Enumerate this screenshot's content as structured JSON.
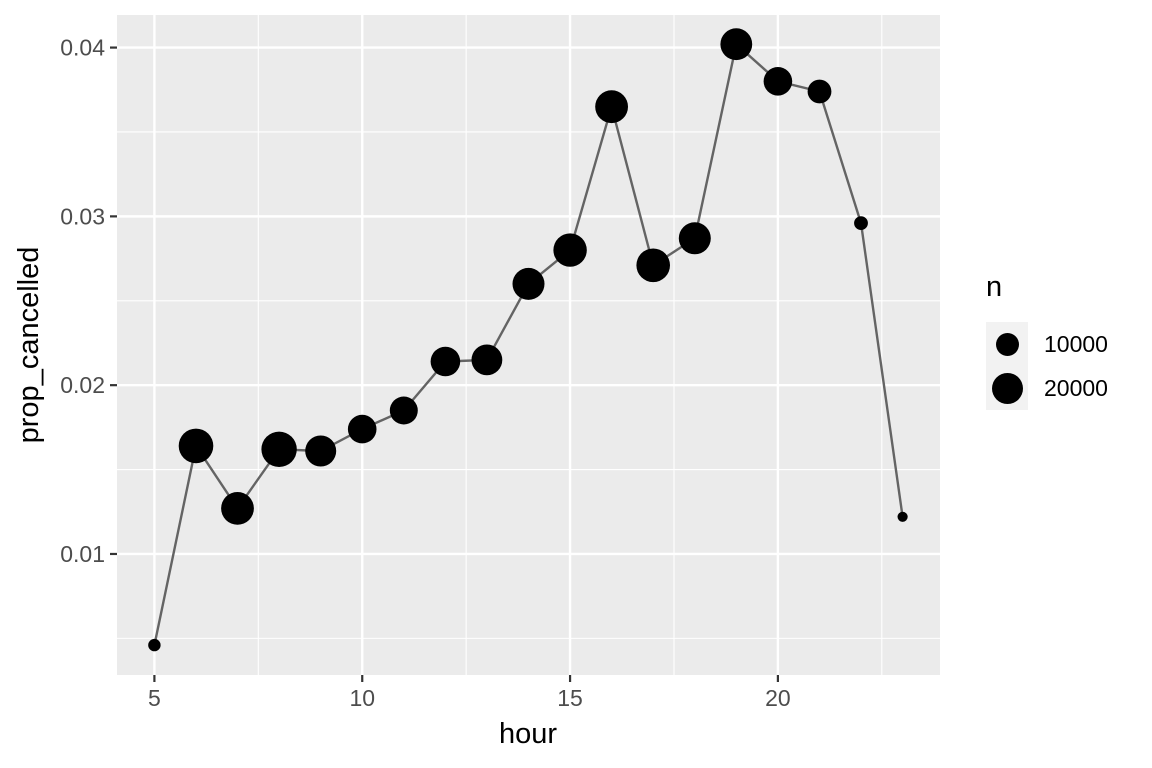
{
  "chart_data": {
    "type": "scatter-line",
    "title": "",
    "xlabel": "hour",
    "ylabel": "prop_cancelled",
    "x": [
      5,
      6,
      7,
      8,
      9,
      10,
      11,
      12,
      13,
      14,
      15,
      16,
      17,
      18,
      19,
      20,
      21,
      22,
      23
    ],
    "series": [
      {
        "name": "prop_cancelled",
        "values": [
          0.0046,
          0.0164,
          0.0127,
          0.0162,
          0.0161,
          0.0174,
          0.0185,
          0.0214,
          0.0215,
          0.026,
          0.028,
          0.0365,
          0.0271,
          0.0287,
          0.0402,
          0.038,
          0.0374,
          0.0296,
          0.0122
        ]
      },
      {
        "name": "n",
        "values": [
          1953,
          25951,
          22821,
          27242,
          20312,
          16708,
          16033,
          18181,
          19956,
          21706,
          23888,
          23002,
          24426,
          21783,
          21441,
          16739,
          10933,
          2639,
          1045
        ]
      }
    ],
    "xlim": [
      4.1,
      23.9
    ],
    "ylim": [
      0.00283,
      0.04193
    ],
    "x_major_ticks": [
      5,
      10,
      15,
      20
    ],
    "x_tick_labels": [
      "5",
      "10",
      "15",
      "20"
    ],
    "x_minor_ticks": [
      7.5,
      12.5,
      17.5,
      22.5
    ],
    "y_major_ticks": [
      0.01,
      0.02,
      0.03,
      0.04
    ],
    "y_tick_labels": [
      "0.01",
      "0.02",
      "0.03",
      "0.04"
    ],
    "y_minor_ticks": [
      0.005,
      0.015,
      0.025,
      0.035
    ],
    "grid": true,
    "legend": {
      "title": "n",
      "position": "right",
      "entries": [
        {
          "label": "10000",
          "n": 10000
        },
        {
          "label": "20000",
          "n": 20000
        }
      ]
    },
    "colors": {
      "background": "#FFFFFF",
      "panel_background": "#EBEBEB",
      "grid_major": "#FFFFFF",
      "grid_minor": "#FFFFFF",
      "line": "#646464",
      "point": "#000000",
      "tick_mark": "#333333",
      "tick_label": "#4D4D4D",
      "axis_title": "#000000",
      "legend_key_background": "#F2F2F2",
      "legend_text": "#000000"
    }
  }
}
